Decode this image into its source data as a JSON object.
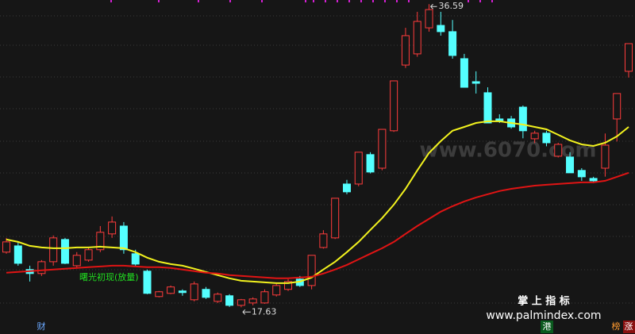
{
  "chart_data": {
    "type": "candlestick",
    "ylim": [
      17,
      36.85
    ],
    "up_color": "#ff3c3c",
    "down_color": "#54ffff",
    "open": [
      21.08,
      21.47,
      19.99,
      19.74,
      20.48,
      21.87,
      20.23,
      20.58,
      21.23,
      22.22,
      22.71,
      20.98,
      19.89,
      18.3,
      18.5,
      18.65,
      18.1,
      18.75,
      18.0,
      18.35,
      17.75,
      17.9,
      17.9,
      18.4,
      18.75,
      19.39,
      18.99,
      21.37,
      21.97,
      25.34,
      25.34,
      27.18,
      26.33,
      28.67,
      32.78,
      33.48,
      35.11,
      35.26,
      34.87,
      33.18,
      31.74,
      31.05,
      29.41,
      29.41,
      30.15,
      28.17,
      28.52,
      27.08,
      27.03,
      26.19,
      25.69,
      26.33,
      29.41,
      32.39
    ],
    "high": [
      21.97,
      21.72,
      20.23,
      20.58,
      22.12,
      21.97,
      21.08,
      21.37,
      22.71,
      23.31,
      22.96,
      21.23,
      19.99,
      18.65,
      18.99,
      18.75,
      19.24,
      18.9,
      18.55,
      18.45,
      18.15,
      18.25,
      18.75,
      19.09,
      19.39,
      19.59,
      20.88,
      22.45,
      24.45,
      25.6,
      27.33,
      27.33,
      28.76,
      31.79,
      35.11,
      36.11,
      36.59,
      36.11,
      35.6,
      33.48,
      32.39,
      31.39,
      29.7,
      29.6,
      30.25,
      28.67,
      28.67,
      27.92,
      27.33,
      26.33,
      25.79,
      28.5,
      31.0,
      34.12
    ],
    "low": [
      20.98,
      20.23,
      19.24,
      19.59,
      20.23,
      20.33,
      20.13,
      20.48,
      21.08,
      21.97,
      20.98,
      20.23,
      18.45,
      18.25,
      18.45,
      18.35,
      18.0,
      18.15,
      17.9,
      17.65,
      17.63,
      17.75,
      17.85,
      18.3,
      18.65,
      18.9,
      18.75,
      21.3,
      21.9,
      24.7,
      25.2,
      26.0,
      26.2,
      28.6,
      32.6,
      33.3,
      34.87,
      34.62,
      33.18,
      31.39,
      31.0,
      29.16,
      29.16,
      28.8,
      28.2,
      27.9,
      27.7,
      27.0,
      26.04,
      25.54,
      25.4,
      25.8,
      28.0,
      32.0
    ],
    "close": [
      21.72,
      20.38,
      19.74,
      20.48,
      21.97,
      20.38,
      20.88,
      21.23,
      22.32,
      22.96,
      21.23,
      20.33,
      18.5,
      18.6,
      18.9,
      18.55,
      19.09,
      18.25,
      18.45,
      17.75,
      18.1,
      18.15,
      18.6,
      18.99,
      19.24,
      18.99,
      20.88,
      22.22,
      24.45,
      24.85,
      27.33,
      26.09,
      28.76,
      31.79,
      34.62,
      35.51,
      36.25,
      34.87,
      33.38,
      31.39,
      31.64,
      29.16,
      29.31,
      28.91,
      28.67,
      28.52,
      27.92,
      27.82,
      26.04,
      25.79,
      25.54,
      27.77,
      31.0,
      34.12
    ],
    "series": [
      {
        "color": "#f2f21e",
        "values": [
          21.87,
          21.72,
          21.47,
          21.37,
          21.32,
          21.32,
          21.37,
          21.37,
          21.42,
          21.37,
          21.32,
          21.08,
          20.73,
          20.48,
          20.33,
          20.23,
          20.04,
          19.84,
          19.64,
          19.44,
          19.29,
          19.24,
          19.19,
          19.14,
          19.14,
          19.24,
          19.49,
          19.99,
          20.48,
          21.08,
          21.72,
          22.47,
          23.21,
          24.05,
          25.04,
          26.19,
          27.28,
          28.02,
          28.67,
          28.91,
          29.16,
          29.26,
          29.26,
          29.16,
          29.06,
          28.91,
          28.76,
          28.42,
          28.07,
          27.82,
          27.72,
          27.92,
          28.32,
          28.91
        ]
      },
      {
        "color": "#e01414",
        "values": [
          19.79,
          19.84,
          19.89,
          19.94,
          19.99,
          20.04,
          20.09,
          20.14,
          20.18,
          20.23,
          20.23,
          20.18,
          20.14,
          20.14,
          20.09,
          19.99,
          19.89,
          19.79,
          19.74,
          19.64,
          19.59,
          19.54,
          19.49,
          19.44,
          19.44,
          19.49,
          19.54,
          19.74,
          19.99,
          20.28,
          20.63,
          20.98,
          21.32,
          21.72,
          22.22,
          22.71,
          23.16,
          23.61,
          23.95,
          24.25,
          24.5,
          24.7,
          24.9,
          25.04,
          25.14,
          25.24,
          25.29,
          25.34,
          25.39,
          25.44,
          25.44,
          25.54,
          25.79,
          26.04
        ]
      }
    ],
    "max_label": 36.59,
    "min_label": 17.63,
    "signal_label": "曙光初现(放量)"
  },
  "footer": {
    "tab": "财",
    "watermark": "www.6070.com",
    "brand": "掌 上 指 标",
    "site": "www.palmindex.com",
    "badges": [
      "港",
      "榜",
      "涨"
    ]
  }
}
